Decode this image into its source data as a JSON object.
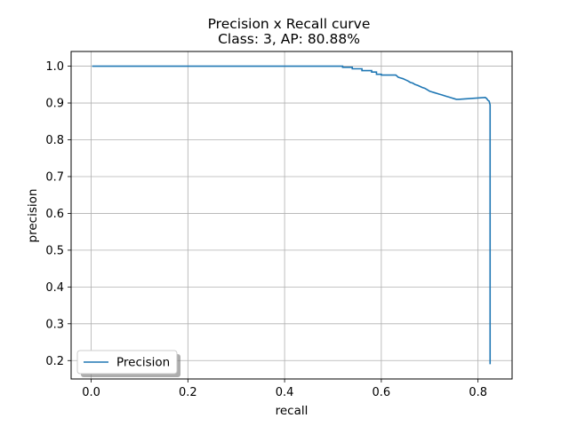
{
  "chart_data": {
    "type": "line",
    "title": "Precision x Recall curve",
    "subtitle": "Class: 3, AP: 80.88%",
    "xlabel": "recall",
    "ylabel": "precision",
    "xlim": [
      -0.0415,
      0.8705
    ],
    "ylim": [
      0.15,
      1.04
    ],
    "xticks": [
      0.0,
      0.2,
      0.4,
      0.6,
      0.8
    ],
    "xtick_labels": [
      "0.0",
      "0.2",
      "0.4",
      "0.6",
      "0.8"
    ],
    "yticks": [
      0.2,
      0.3,
      0.4,
      0.5,
      0.6,
      0.7,
      0.8,
      0.9,
      1.0
    ],
    "ytick_labels": [
      "0.2",
      "0.3",
      "0.4",
      "0.5",
      "0.6",
      "0.7",
      "0.8",
      "0.9",
      "1.0"
    ],
    "grid": true,
    "legend_position": "lower-left",
    "series": [
      {
        "name": "Precision",
        "color": "#1f77b4",
        "x": [
          0.002,
          0.52,
          0.52,
          0.54,
          0.54,
          0.56,
          0.56,
          0.58,
          0.58,
          0.59,
          0.59,
          0.6,
          0.6,
          0.63,
          0.635,
          0.64,
          0.645,
          0.65,
          0.655,
          0.66,
          0.665,
          0.67,
          0.675,
          0.68,
          0.685,
          0.69,
          0.695,
          0.7,
          0.705,
          0.71,
          0.715,
          0.72,
          0.725,
          0.73,
          0.735,
          0.74,
          0.745,
          0.75,
          0.755,
          0.76,
          0.815,
          0.818,
          0.82,
          0.823,
          0.825,
          0.825,
          0.825
        ],
        "y": [
          1.0,
          1.0,
          0.997,
          0.997,
          0.993,
          0.993,
          0.988,
          0.988,
          0.984,
          0.984,
          0.978,
          0.978,
          0.976,
          0.976,
          0.97,
          0.968,
          0.966,
          0.963,
          0.96,
          0.956,
          0.954,
          0.95,
          0.948,
          0.945,
          0.942,
          0.94,
          0.936,
          0.932,
          0.93,
          0.928,
          0.926,
          0.924,
          0.922,
          0.92,
          0.918,
          0.916,
          0.914,
          0.912,
          0.91,
          0.91,
          0.915,
          0.912,
          0.908,
          0.905,
          0.895,
          0.8,
          0.19
        ]
      }
    ]
  }
}
